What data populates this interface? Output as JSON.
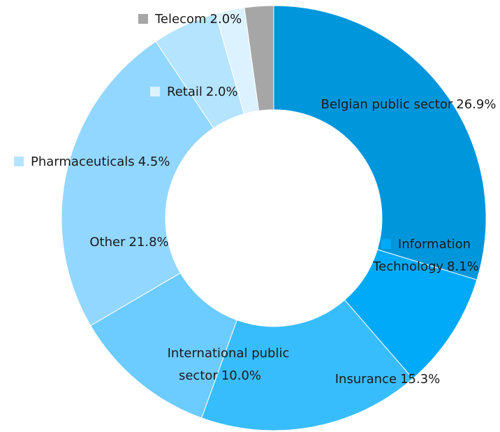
{
  "chart_data": {
    "type": "donut",
    "categories": [
      "Belgian public sector",
      "Information Technology",
      "Insurance",
      "International public sector",
      "Other",
      "Pharmaceuticals",
      "Retail",
      "Telecom"
    ],
    "values": [
      26.9,
      8.1,
      15.3,
      10.0,
      21.8,
      4.5,
      2.0,
      2.0
    ],
    "value_labels": [
      "26.9%",
      "8.1%",
      "15.3%",
      "10.0%",
      "21.8%",
      "4.5%",
      "2.0%",
      "2.0%"
    ],
    "colors": [
      "#0096dc",
      "#00aaf8",
      "#38bdfc",
      "#6ccbff",
      "#92d7ff",
      "#b4e4ff",
      "#dcf2ff",
      "#a6a6a6"
    ]
  }
}
